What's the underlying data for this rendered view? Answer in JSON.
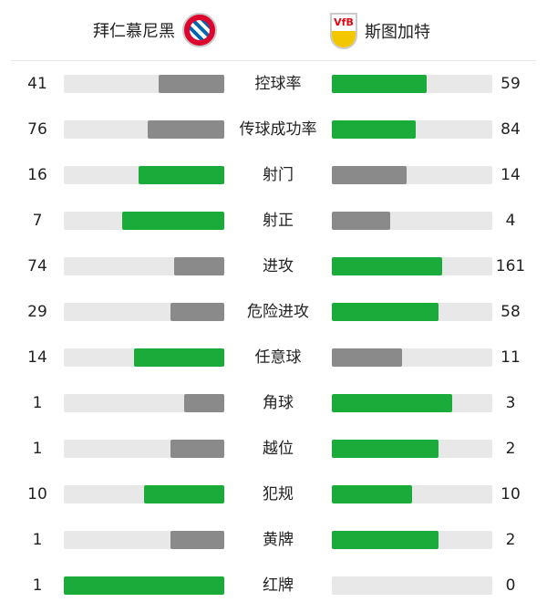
{
  "home": {
    "name": "拜仁慕尼黑",
    "logo": "FC BAYERN MÜNCHEN"
  },
  "away": {
    "name": "斯图加特",
    "logo": "VfB"
  },
  "colors": {
    "leader": "#1aab3b",
    "trailer": "#8a8a8a",
    "track": "#e8e8e8"
  },
  "stats": [
    {
      "label": "控球率",
      "home": 41,
      "away": 59
    },
    {
      "label": "传球成功率",
      "home": 76,
      "away": 84
    },
    {
      "label": "射门",
      "home": 16,
      "away": 14
    },
    {
      "label": "射正",
      "home": 7,
      "away": 4
    },
    {
      "label": "进攻",
      "home": 74,
      "away": 161
    },
    {
      "label": "危险进攻",
      "home": 29,
      "away": 58
    },
    {
      "label": "任意球",
      "home": 14,
      "away": 11
    },
    {
      "label": "角球",
      "home": 1,
      "away": 3
    },
    {
      "label": "越位",
      "home": 1,
      "away": 2
    },
    {
      "label": "犯规",
      "home": 10,
      "away": 10
    },
    {
      "label": "黄牌",
      "home": 1,
      "away": 2
    },
    {
      "label": "红牌",
      "home": 1,
      "away": 0
    }
  ]
}
